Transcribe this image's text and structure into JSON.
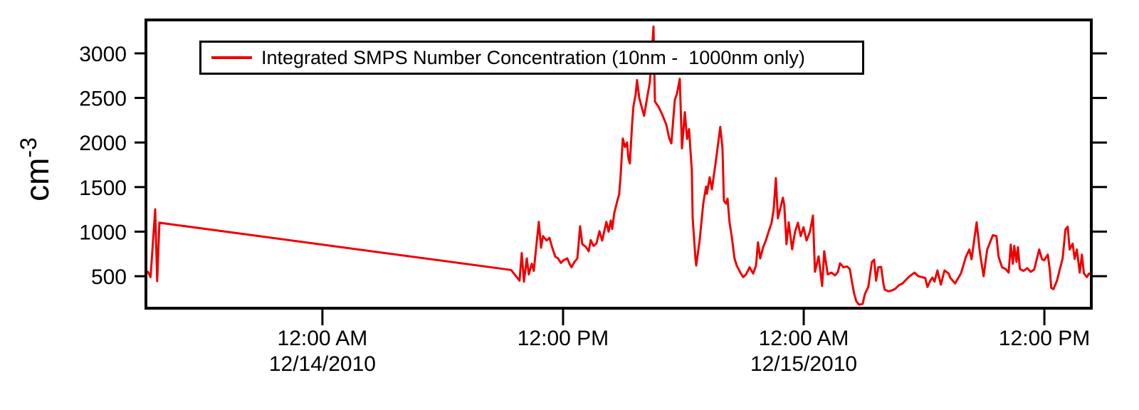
{
  "chart_data": {
    "type": "line",
    "title": "",
    "ylabel_base": "cm",
    "ylabel_exp": "-3",
    "x_unit": "hours relative to 12/14/2010 00:00",
    "xlim": [
      -8.8,
      38.34
    ],
    "ylim": [
      141,
      3375
    ],
    "grid": false,
    "y_ticks": [
      500,
      1000,
      1500,
      2000,
      2500,
      3000
    ],
    "x_ticks": [
      {
        "t": 0,
        "line1": "12:00 AM",
        "line2": "12/14/2010"
      },
      {
        "t": 12,
        "line1": "12:00 PM",
        "line2": ""
      },
      {
        "t": 24,
        "line1": "12:00 AM",
        "line2": "12/15/2010"
      },
      {
        "t": 36,
        "line1": "12:00 PM",
        "line2": ""
      }
    ],
    "legend": {
      "position": "top-center-inside",
      "label": "Integrated SMPS Number Concentration (10nm -  1000nm only)"
    },
    "colors": {
      "line": "#ee0000",
      "axis": "#000000",
      "background": "#ffffff"
    },
    "series": [
      {
        "name": "Integrated SMPS Number Concentration (10nm - 1000nm only)",
        "color": "#ee0000",
        "points": [
          [
            -8.7,
            550
          ],
          [
            -8.57,
            490
          ],
          [
            -8.34,
            1250
          ],
          [
            -8.24,
            445
          ],
          [
            -8.13,
            1100
          ],
          [
            9.41,
            570
          ],
          [
            9.83,
            450
          ],
          [
            9.94,
            760
          ],
          [
            10.05,
            440
          ],
          [
            10.19,
            700
          ],
          [
            10.29,
            520
          ],
          [
            10.44,
            640
          ],
          [
            10.54,
            560
          ],
          [
            10.79,
            1110
          ],
          [
            10.9,
            820
          ],
          [
            11.0,
            950
          ],
          [
            11.18,
            900
          ],
          [
            11.32,
            930
          ],
          [
            11.46,
            820
          ],
          [
            11.61,
            720
          ],
          [
            11.75,
            700
          ],
          [
            11.89,
            650
          ],
          [
            12.03,
            680
          ],
          [
            12.21,
            700
          ],
          [
            12.32,
            640
          ],
          [
            12.42,
            600
          ],
          [
            12.57,
            660
          ],
          [
            12.71,
            700
          ],
          [
            12.85,
            1060
          ],
          [
            12.96,
            860
          ],
          [
            13.13,
            830
          ],
          [
            13.28,
            780
          ],
          [
            13.38,
            905
          ],
          [
            13.52,
            840
          ],
          [
            13.67,
            870
          ],
          [
            13.81,
            1005
          ],
          [
            13.95,
            900
          ],
          [
            14.16,
            1110
          ],
          [
            14.27,
            1000
          ],
          [
            14.38,
            1125
          ],
          [
            14.45,
            1030
          ],
          [
            14.55,
            1205
          ],
          [
            14.7,
            1340
          ],
          [
            14.8,
            1420
          ],
          [
            14.87,
            1630
          ],
          [
            14.98,
            2045
          ],
          [
            15.09,
            1950
          ],
          [
            15.19,
            2000
          ],
          [
            15.26,
            1820
          ],
          [
            15.33,
            1765
          ],
          [
            15.44,
            2200
          ],
          [
            15.51,
            2405
          ],
          [
            15.62,
            2540
          ],
          [
            15.69,
            2700
          ],
          [
            15.8,
            2500
          ],
          [
            15.94,
            2380
          ],
          [
            16.04,
            2300
          ],
          [
            16.19,
            2500
          ],
          [
            16.33,
            2680
          ],
          [
            16.51,
            3300
          ],
          [
            16.58,
            2460
          ],
          [
            16.76,
            2400
          ],
          [
            16.93,
            2320
          ],
          [
            17.15,
            2200
          ],
          [
            17.29,
            2050
          ],
          [
            17.4,
            1990
          ],
          [
            17.57,
            2475
          ],
          [
            17.68,
            2550
          ],
          [
            17.82,
            2715
          ],
          [
            17.93,
            1935
          ],
          [
            18.07,
            2340
          ],
          [
            18.18,
            2040
          ],
          [
            18.28,
            2150
          ],
          [
            18.42,
            1690
          ],
          [
            18.46,
            1155
          ],
          [
            18.6,
            700
          ],
          [
            18.64,
            620
          ],
          [
            18.81,
            900
          ],
          [
            18.99,
            1315
          ],
          [
            19.13,
            1505
          ],
          [
            19.17,
            1425
          ],
          [
            19.31,
            1610
          ],
          [
            19.42,
            1475
          ],
          [
            19.6,
            1760
          ],
          [
            19.84,
            2175
          ],
          [
            19.95,
            1935
          ],
          [
            20.02,
            1345
          ],
          [
            20.13,
            1315
          ],
          [
            20.2,
            1370
          ],
          [
            20.3,
            1105
          ],
          [
            20.41,
            945
          ],
          [
            20.55,
            700
          ],
          [
            20.66,
            620
          ],
          [
            20.84,
            540
          ],
          [
            20.98,
            490
          ],
          [
            21.12,
            520
          ],
          [
            21.3,
            600
          ],
          [
            21.48,
            530
          ],
          [
            21.62,
            620
          ],
          [
            21.72,
            880
          ],
          [
            21.83,
            700
          ],
          [
            21.97,
            820
          ],
          [
            22.11,
            900
          ],
          [
            22.25,
            1000
          ],
          [
            22.4,
            1100
          ],
          [
            22.5,
            1250
          ],
          [
            22.61,
            1600
          ],
          [
            22.71,
            1150
          ],
          [
            22.82,
            1250
          ],
          [
            22.96,
            1380
          ],
          [
            23.03,
            1300
          ],
          [
            23.14,
            860
          ],
          [
            23.25,
            1105
          ],
          [
            23.42,
            803
          ],
          [
            23.57,
            1000
          ],
          [
            23.71,
            1100
          ],
          [
            23.85,
            950
          ],
          [
            23.99,
            1050
          ],
          [
            24.14,
            900
          ],
          [
            24.31,
            1000
          ],
          [
            24.46,
            1180
          ],
          [
            24.56,
            550
          ],
          [
            24.74,
            723
          ],
          [
            24.92,
            390
          ],
          [
            25.02,
            780
          ],
          [
            25.2,
            520
          ],
          [
            25.38,
            540
          ],
          [
            25.56,
            510
          ],
          [
            25.7,
            545
          ],
          [
            25.81,
            645
          ],
          [
            25.98,
            600
          ],
          [
            26.16,
            610
          ],
          [
            26.3,
            580
          ],
          [
            26.41,
            430
          ],
          [
            26.52,
            300
          ],
          [
            26.62,
            220
          ],
          [
            26.76,
            180
          ],
          [
            26.94,
            190
          ],
          [
            27.05,
            300
          ],
          [
            27.22,
            380
          ],
          [
            27.4,
            660
          ],
          [
            27.51,
            685
          ],
          [
            27.61,
            450
          ],
          [
            27.72,
            600
          ],
          [
            27.86,
            604
          ],
          [
            27.97,
            420
          ],
          [
            28.04,
            350
          ],
          [
            28.22,
            330
          ],
          [
            28.39,
            340
          ],
          [
            28.57,
            360
          ],
          [
            28.75,
            400
          ],
          [
            28.93,
            420
          ],
          [
            29.1,
            460
          ],
          [
            29.28,
            500
          ],
          [
            29.53,
            540
          ],
          [
            29.71,
            500
          ],
          [
            29.89,
            490
          ],
          [
            30.06,
            480
          ],
          [
            30.17,
            380
          ],
          [
            30.31,
            450
          ],
          [
            30.42,
            485
          ],
          [
            30.52,
            440
          ],
          [
            30.67,
            565
          ],
          [
            30.84,
            405
          ],
          [
            31.02,
            565
          ],
          [
            31.23,
            530
          ],
          [
            31.31,
            480
          ],
          [
            31.55,
            420
          ],
          [
            31.84,
            532
          ],
          [
            32.09,
            718
          ],
          [
            32.26,
            800
          ],
          [
            32.37,
            690
          ],
          [
            32.62,
            1105
          ],
          [
            32.79,
            760
          ],
          [
            32.97,
            500
          ],
          [
            33.15,
            800
          ],
          [
            33.43,
            960
          ],
          [
            33.61,
            950
          ],
          [
            33.72,
            718
          ],
          [
            33.89,
            600
          ],
          [
            34.07,
            580
          ],
          [
            34.22,
            540
          ],
          [
            34.32,
            855
          ],
          [
            34.43,
            640
          ],
          [
            34.5,
            840
          ],
          [
            34.61,
            660
          ],
          [
            34.68,
            825
          ],
          [
            34.78,
            580
          ],
          [
            34.96,
            560
          ],
          [
            35.14,
            590
          ],
          [
            35.32,
            550
          ],
          [
            35.49,
            573
          ],
          [
            35.74,
            800
          ],
          [
            35.88,
            690
          ],
          [
            35.99,
            680
          ],
          [
            36.17,
            742
          ],
          [
            36.27,
            573
          ],
          [
            36.34,
            370
          ],
          [
            36.45,
            355
          ],
          [
            36.63,
            450
          ],
          [
            36.73,
            540
          ],
          [
            36.91,
            700
          ],
          [
            37.05,
            1025
          ],
          [
            37.16,
            1055
          ],
          [
            37.26,
            800
          ],
          [
            37.41,
            865
          ],
          [
            37.51,
            694
          ],
          [
            37.62,
            800
          ],
          [
            37.76,
            540
          ],
          [
            37.87,
            742
          ],
          [
            37.97,
            532
          ],
          [
            38.12,
            490
          ],
          [
            38.22,
            530
          ],
          [
            38.33,
            516
          ]
        ]
      }
    ]
  }
}
